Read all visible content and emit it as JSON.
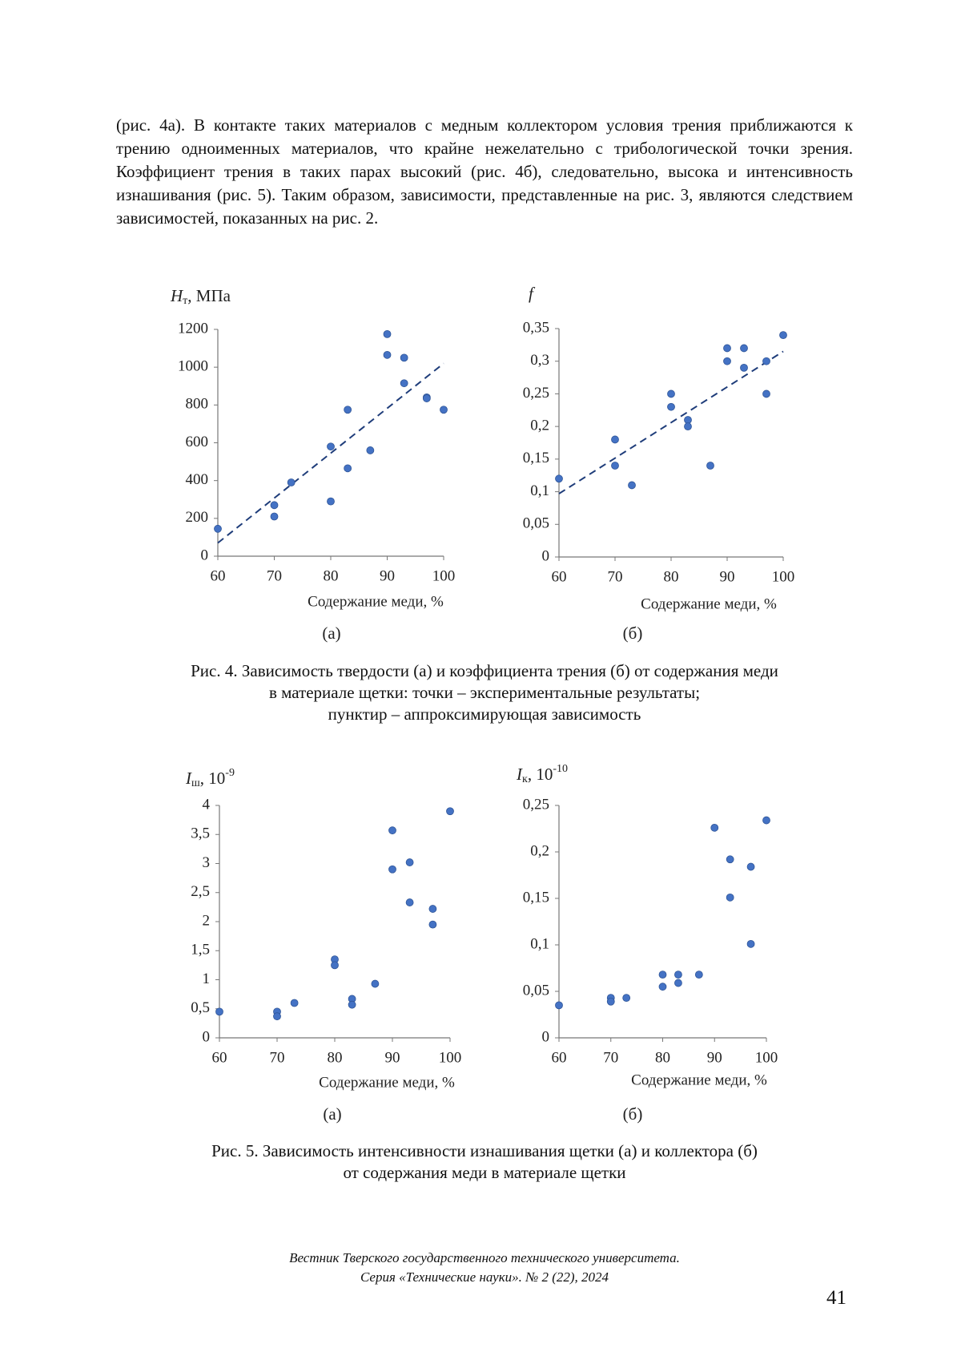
{
  "paragraph": "(рис. 4а). В контакте таких материалов с медным коллектором условия трения приближаются к трению одноименных материалов, что крайне нежелательно с трибологической точки зрения. Коэффициент трения в таких парах высокий (рис. 4б), следовательно, высока и интенсивность изнашивания (рис. 5). Таким образом, зависимости, представленные на рис. 3, являются следствием зависимостей, показанных на рис. 2.",
  "figure4_caption": [
    "Рис. 4. Зависимость твердости (а) и коэффициента трения (б) от содержания меди",
    "в материале щетки: точки – экспериментальные результаты;",
    "пунктир – аппроксимирующая зависимость"
  ],
  "figure5_caption": [
    "Рис. 5. Зависимость интенсивности изнашивания щетки (а) и коллектора (б)",
    "от содержания меди в материале щетки"
  ],
  "footer": [
    "Вестник Тверского государственного технического университета.",
    "Серия «Технические науки». № 2 (22), 2024"
  ],
  "page_number": "41",
  "chart_data": [
    {
      "type": "scatter",
      "ylabel": {
        "symbol": "H",
        "sub": "т",
        "text": ", МПа"
      },
      "xlabel": "Содержание меди, %",
      "panel": "(а)",
      "x": [
        60,
        70,
        70,
        73,
        80,
        80,
        83,
        83,
        87,
        90,
        90,
        93,
        93,
        97,
        97,
        100
      ],
      "series": [
        {
          "color": "#4472c4",
          "values": [
            145,
            270,
            210,
            390,
            580,
            290,
            775,
            465,
            560,
            1175,
            1065,
            1050,
            915,
            840,
            835,
            775
          ]
        }
      ],
      "trendline": {
        "color": "#1f3d7a",
        "x": [
          60,
          100
        ],
        "values": [
          70,
          1020
        ]
      },
      "xlim": [
        60,
        100
      ],
      "xticks": [
        60,
        70,
        80,
        90,
        100
      ],
      "ylim": [
        0,
        1200
      ],
      "yticks": [
        0,
        200,
        400,
        600,
        800,
        1000,
        1200
      ]
    },
    {
      "type": "scatter",
      "ylabel": {
        "symbol": "f"
      },
      "xlabel": "Содержание меди, %",
      "panel": "(б)",
      "x": [
        60,
        70,
        70,
        73,
        80,
        80,
        83,
        83,
        87,
        90,
        90,
        93,
        93,
        97,
        97,
        100
      ],
      "series": [
        {
          "color": "#4472c4",
          "values": [
            0.12,
            0.18,
            0.14,
            0.11,
            0.25,
            0.23,
            0.21,
            0.2,
            0.14,
            0.32,
            0.3,
            0.32,
            0.29,
            0.3,
            0.25,
            0.34
          ]
        }
      ],
      "trendline": {
        "color": "#1f3d7a",
        "x": [
          60,
          100
        ],
        "values": [
          0.097,
          0.315
        ]
      },
      "xlim": [
        60,
        100
      ],
      "xticks": [
        60,
        70,
        80,
        90,
        100
      ],
      "ylim": [
        0,
        0.35
      ],
      "yticks": [
        0,
        {
          "value": 0.05,
          "label": "0,05"
        },
        {
          "value": 0.1,
          "label": "0,1"
        },
        {
          "value": 0.15,
          "label": "0,15"
        },
        {
          "value": 0.2,
          "label": "0,2"
        },
        {
          "value": 0.25,
          "label": "0,25"
        },
        {
          "value": 0.3,
          "label": "0,3"
        },
        {
          "value": 0.35,
          "label": "0,35"
        }
      ]
    },
    {
      "type": "scatter",
      "ylabel": {
        "symbol": "I",
        "sub": "ш",
        "text": ", 10",
        "sup": "-9"
      },
      "xlabel": "Содержание меди, %",
      "panel": "(а)",
      "x": [
        60,
        70,
        70,
        73,
        80,
        80,
        83,
        83,
        87,
        90,
        90,
        93,
        93,
        97,
        97,
        100
      ],
      "series": [
        {
          "color": "#4472c4",
          "values": [
            0.45,
            0.45,
            0.37,
            0.6,
            1.35,
            1.25,
            0.67,
            0.57,
            0.93,
            3.57,
            2.9,
            3.02,
            2.33,
            2.22,
            1.95,
            3.9
          ]
        }
      ],
      "xlim": [
        60,
        100
      ],
      "xticks": [
        60,
        70,
        80,
        90,
        100
      ],
      "ylim": [
        0,
        4
      ],
      "yticks": [
        0,
        {
          "value": 0.5,
          "label": "0,5"
        },
        1,
        {
          "value": 1.5,
          "label": "1,5"
        },
        2,
        {
          "value": 2.5,
          "label": "2,5"
        },
        3,
        {
          "value": 3.5,
          "label": "3,5"
        },
        4
      ]
    },
    {
      "type": "scatter",
      "ylabel": {
        "symbol": "I",
        "sub": "к",
        "text": ", 10",
        "sup": "-10"
      },
      "xlabel": "Содержание меди, %",
      "panel": "(б)",
      "x": [
        60,
        70,
        70,
        73,
        80,
        80,
        83,
        83,
        87,
        90,
        93,
        93,
        97,
        97,
        100
      ],
      "series": [
        {
          "color": "#4472c4",
          "values": [
            0.035,
            0.043,
            0.039,
            0.043,
            0.068,
            0.055,
            0.068,
            0.059,
            0.068,
            0.226,
            0.192,
            0.151,
            0.184,
            0.101,
            0.234
          ]
        }
      ],
      "xlim": [
        60,
        100
      ],
      "xticks": [
        60,
        70,
        80,
        90,
        100
      ],
      "ylim": [
        0,
        0.25
      ],
      "yticks": [
        0,
        {
          "value": 0.05,
          "label": "0,05"
        },
        {
          "value": 0.1,
          "label": "0,1"
        },
        {
          "value": 0.15,
          "label": "0,15"
        },
        {
          "value": 0.2,
          "label": "0,2"
        },
        {
          "value": 0.25,
          "label": "0,25"
        }
      ]
    }
  ]
}
